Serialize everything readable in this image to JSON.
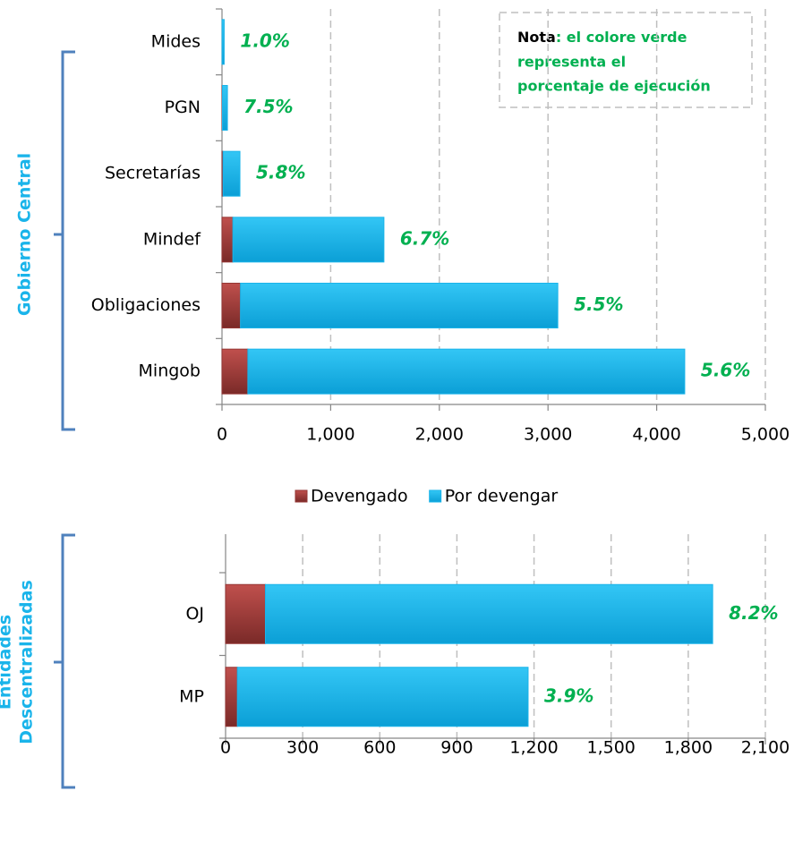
{
  "chart_data": [
    {
      "type": "stacked-bar-horizontal",
      "y_label": "Gobierno Central",
      "categories": [
        "Mides",
        "PGN",
        "Secretarías",
        "Mindef",
        "Obligaciones",
        "Mingob"
      ],
      "series": [
        {
          "name": "Devengado",
          "color": "#953735",
          "values": [
            0.2,
            4,
            10,
            100,
            170,
            238
          ]
        },
        {
          "name": "Por devengar",
          "color": "#1ab4ea",
          "values": [
            19.8,
            46,
            155,
            1390,
            2920,
            4020
          ]
        }
      ],
      "annotations": [
        "1.0%",
        "7.5%",
        "5.8%",
        "6.7%",
        "5.5%",
        "5.6%"
      ],
      "xlim": [
        0,
        5000
      ],
      "xticks": [
        0,
        {
          "value": 1000,
          "label": "1,000"
        },
        {
          "value": 2000,
          "label": "2,000"
        },
        {
          "value": 3000,
          "label": "3,000"
        },
        {
          "value": 4000,
          "label": "4,000"
        },
        {
          "value": 5000,
          "label": "5,000"
        }
      ],
      "grid": true,
      "note": {
        "bold": "Nota",
        "lines": [
          ": el colore verde",
          "representa el",
          "porcentaje de ejecución"
        ]
      }
    },
    {
      "type": "stacked-bar-horizontal",
      "y_label": [
        "Entidades",
        "Descentralizadas"
      ],
      "categories": [
        "OJ",
        "MP"
      ],
      "series": [
        {
          "color": "#953735",
          "values": [
            155,
            46
          ]
        },
        {
          "color": "#1ab4ea",
          "values": [
            1740,
            1131
          ]
        }
      ],
      "annotations": [
        "8.2%",
        "3.9%"
      ],
      "xlim": [
        0,
        2100
      ],
      "xticks": [
        0,
        300,
        600,
        900,
        {
          "value": 1200,
          "label": "1,200"
        },
        {
          "value": 1500,
          "label": "1,500"
        },
        {
          "value": 1800,
          "label": "1,800"
        },
        {
          "value": 2100,
          "label": "2,100"
        }
      ],
      "grid": true
    }
  ]
}
